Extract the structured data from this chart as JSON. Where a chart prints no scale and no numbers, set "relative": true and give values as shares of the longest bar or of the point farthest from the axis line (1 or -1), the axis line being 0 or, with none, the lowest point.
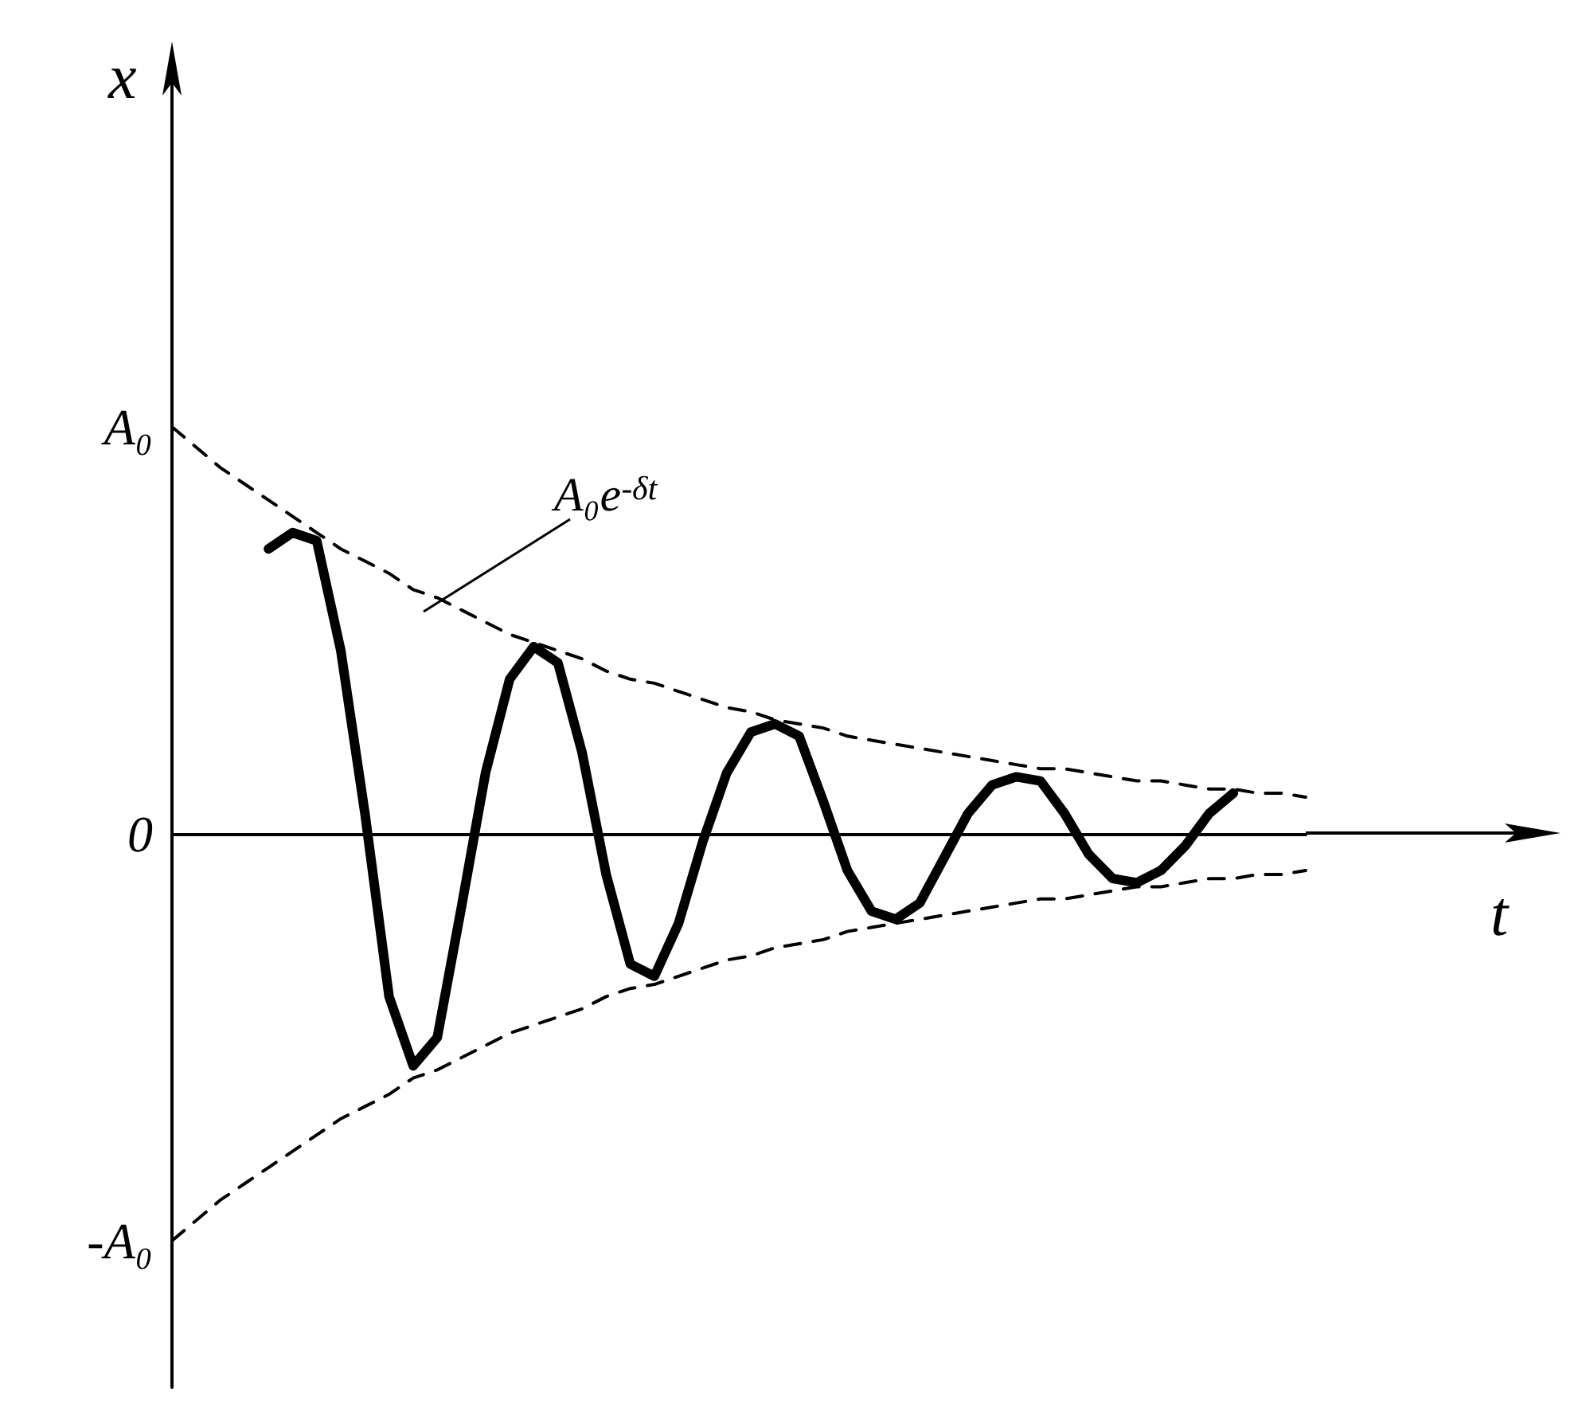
{
  "chart_data": {
    "type": "line",
    "xlabel": "t",
    "ylabel": "x",
    "categories": [
      null,
      null,
      null,
      null,
      null,
      null,
      null,
      null,
      null,
      null,
      null,
      null,
      null,
      null,
      null,
      null,
      null,
      null,
      null,
      null,
      null,
      null,
      null,
      null,
      null,
      null,
      null,
      null,
      null,
      null,
      null,
      null,
      null,
      null,
      null,
      null,
      null,
      null,
      null,
      null,
      null,
      null,
      null,
      null,
      null,
      null,
      null,
      null
    ],
    "series": [
      {
        "color": "#000000",
        "line_style": "dashed",
        "values": [
          1.0,
          0.95,
          0.9,
          0.86,
          0.82,
          0.78,
          0.74,
          0.7,
          0.67,
          0.64,
          0.6,
          0.58,
          0.55,
          0.52,
          0.49,
          0.47,
          0.45,
          0.43,
          0.4,
          0.38,
          0.37,
          0.35,
          0.33,
          0.31,
          0.3,
          0.28,
          0.27,
          0.26,
          0.24,
          0.23,
          0.22,
          0.21,
          0.2,
          0.19,
          0.18,
          0.17,
          0.16,
          0.16,
          0.15,
          0.14,
          0.13,
          0.13,
          0.12,
          0.11,
          0.11,
          0.1,
          0.1,
          0.09
        ]
      },
      {
        "color": "#000000",
        "line_style": "dashed",
        "values": [
          -1.0,
          -0.95,
          -0.9,
          -0.86,
          -0.82,
          -0.78,
          -0.74,
          -0.7,
          -0.67,
          -0.64,
          -0.6,
          -0.58,
          -0.55,
          -0.52,
          -0.49,
          -0.47,
          -0.45,
          -0.43,
          -0.4,
          -0.38,
          -0.37,
          -0.35,
          -0.33,
          -0.31,
          -0.3,
          -0.28,
          -0.27,
          -0.26,
          -0.24,
          -0.23,
          -0.22,
          -0.21,
          -0.2,
          -0.19,
          -0.18,
          -0.17,
          -0.16,
          -0.16,
          -0.15,
          -0.14,
          -0.13,
          -0.13,
          -0.12,
          -0.11,
          -0.11,
          -0.1,
          -0.1,
          -0.09
        ]
      },
      {
        "color": "#000000",
        "line_style": "solid",
        "values": [
          null,
          null,
          null,
          null,
          0.7,
          0.74,
          0.72,
          0.45,
          0.05,
          -0.4,
          -0.57,
          -0.5,
          -0.18,
          0.15,
          0.38,
          0.46,
          0.42,
          0.2,
          -0.1,
          -0.32,
          -0.35,
          -0.22,
          -0.02,
          0.15,
          0.25,
          0.27,
          0.24,
          0.08,
          -0.09,
          -0.19,
          -0.21,
          -0.17,
          -0.06,
          0.05,
          0.12,
          0.14,
          0.13,
          0.05,
          -0.05,
          -0.11,
          -0.12,
          -0.09,
          -0.03,
          0.05,
          0.1,
          null,
          null,
          null
        ]
      }
    ],
    "relative": true,
    "grid": false,
    "marker": "none",
    "annotations": [
      "A₀",
      "0",
      "-A₀",
      "A₀e$^{-δt}$"
    ]
  }
}
